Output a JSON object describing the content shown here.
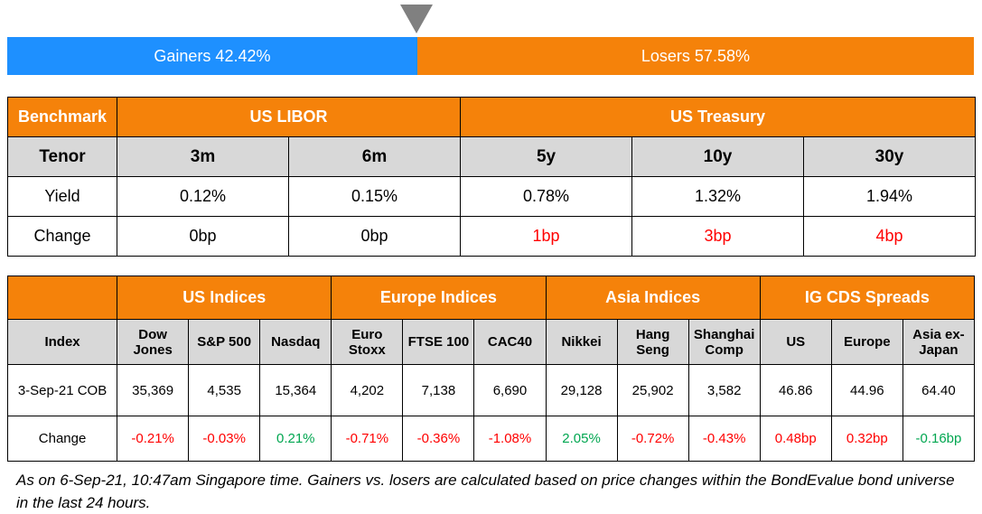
{
  "breadth": {
    "gainers_label": "Gainers 42.42%",
    "losers_label": "Losers 57.58%",
    "gainers_pct": 42.42,
    "losers_pct": 57.58,
    "gainers_color": "#1E90FF",
    "losers_color": "#F5820A",
    "pointer_color": "#808080"
  },
  "rates": {
    "benchmark_label": "Benchmark",
    "group_libor": "US LIBOR",
    "group_treasury": "US Treasury",
    "tenor_label": "Tenor",
    "tenors": [
      "3m",
      "6m",
      "5y",
      "10y",
      "30y"
    ],
    "yield_label": "Yield",
    "yields": [
      "0.12%",
      "0.15%",
      "0.78%",
      "1.32%",
      "1.94%"
    ],
    "change_label": "Change",
    "changes": [
      "0bp",
      "0bp",
      "1bp",
      "3bp",
      "4bp"
    ]
  },
  "indices": {
    "groups": [
      "US Indices",
      "Europe Indices",
      "Asia Indices",
      "IG CDS Spreads"
    ],
    "index_label": "Index",
    "columns": [
      [
        "Dow",
        "Jones"
      ],
      [
        "S&P 500"
      ],
      [
        "Nasdaq"
      ],
      [
        "Euro",
        "Stoxx"
      ],
      [
        "FTSE 100"
      ],
      [
        "CAC40"
      ],
      [
        "Nikkei"
      ],
      [
        "Hang",
        "Seng"
      ],
      [
        "Shanghai",
        "Comp"
      ],
      [
        "US"
      ],
      [
        "Europe"
      ],
      [
        "Asia ex-",
        "Japan"
      ]
    ],
    "date_label": "3-Sep-21 COB",
    "values": [
      "35,369",
      "4,535",
      "15,364",
      "4,202",
      "7,138",
      "6,690",
      "29,128",
      "25,902",
      "3,582",
      "46.86",
      "44.96",
      "64.40"
    ],
    "change_label": "Change",
    "changes": [
      "-0.21%",
      "-0.03%",
      "0.21%",
      "-0.71%",
      "-0.36%",
      "-1.08%",
      "2.05%",
      "-0.72%",
      "-0.43%",
      "0.48bp",
      "0.32bp",
      "-0.16bp"
    ]
  },
  "footnote": "As on 6-Sep-21, 10:47am Singapore time. Gainers vs. losers are calculated based on price changes within the BondEvalue bond universe in the last 24 hours.",
  "colors": {
    "header_bg": "#F5820A",
    "subheader_bg": "#D8D8D8",
    "negative": "#FF0000",
    "positive": "#00A650"
  }
}
